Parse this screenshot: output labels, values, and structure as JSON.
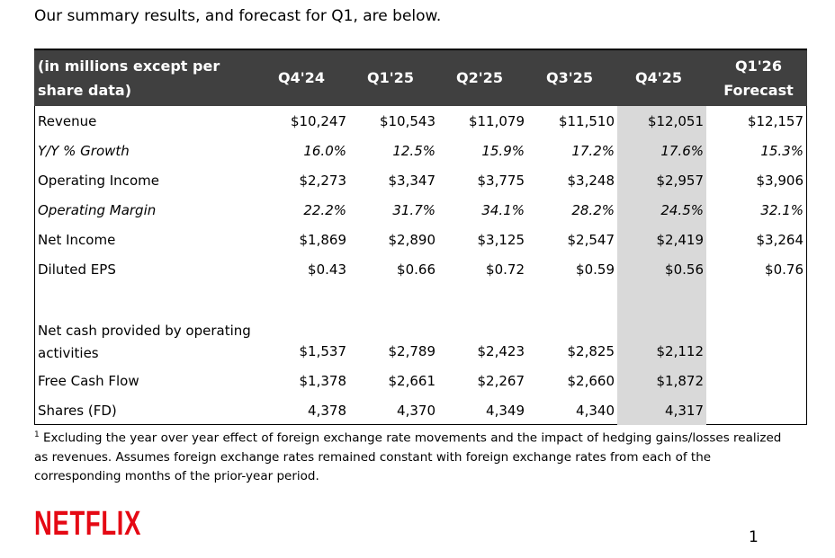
{
  "intro": "Our summary results, and forecast for Q1, are below.",
  "table": {
    "header": [
      "(in millions except per share data)",
      "Q4'24",
      "Q1'25",
      "Q2'25",
      "Q3'25",
      "Q4'25",
      "Q1'26 Forecast"
    ],
    "rows": [
      {
        "cells": [
          "Revenue",
          "$10,247",
          "$10,543",
          "$11,079",
          "$11,510",
          "$12,051",
          "$12,157"
        ]
      },
      {
        "cells": [
          "Y/Y % Growth",
          "16.0%",
          "12.5%",
          "15.9%",
          "17.2%",
          "17.6%",
          "15.3%"
        ],
        "italic": true
      },
      {
        "cells": [
          "Operating Income",
          "$2,273",
          "$3,347",
          "$3,775",
          "$3,248",
          "$2,957",
          "$3,906"
        ]
      },
      {
        "cells": [
          "Operating Margin",
          "22.2%",
          "31.7%",
          "34.1%",
          "28.2%",
          "24.5%",
          "32.1%"
        ],
        "italic": true
      },
      {
        "cells": [
          "Net Income",
          "$1,869",
          "$2,890",
          "$3,125",
          "$2,547",
          "$2,419",
          "$3,264"
        ]
      },
      {
        "cells": [
          "Diluted EPS",
          "$0.43",
          "$0.66",
          "$0.72",
          "$0.59",
          "$0.56",
          "$0.76"
        ]
      },
      {
        "cells": [
          "Net cash provided by operating activities",
          "$1,537",
          "$2,789",
          "$2,423",
          "$2,825",
          "$2,112"
        ]
      },
      {
        "cells": [
          "Free Cash Flow",
          "$1,378",
          "$2,661",
          "$2,267",
          "$2,660",
          "$1,872"
        ]
      },
      {
        "cells": [
          "Shares (FD)",
          "4,378",
          "4,370",
          "4,349",
          "4,340",
          "4,317"
        ]
      }
    ]
  },
  "footnote": {
    "marker": "1",
    "text": "Excluding the year over year effect of foreign exchange rate movements and the impact of hedging gains/losses realized as revenues. Assumes foreign exchange rates remained constant with foreign exchange rates from each of the corresponding months of the prior-year period."
  },
  "logo": "NETFLIX",
  "page_number": "1"
}
